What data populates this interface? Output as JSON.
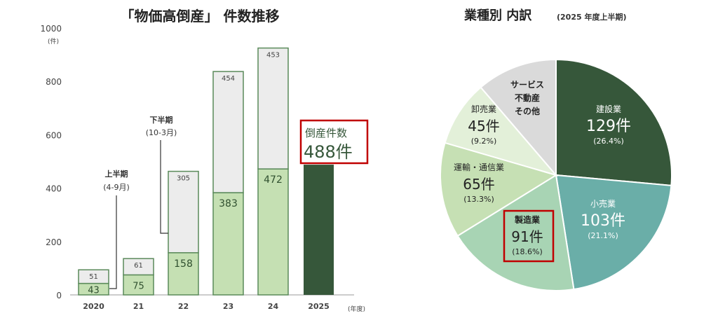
{
  "chart_data": [
    {
      "type": "bar",
      "stacked": true,
      "title": "「物価高倒産」 件数推移",
      "ylabel": "(件)",
      "xlabel": "(年度)",
      "ylim": [
        0,
        1000
      ],
      "yticks": [
        "0",
        "200",
        "400",
        "600",
        "800",
        "1000"
      ],
      "categories": [
        "2020",
        "21",
        "22",
        "23",
        "24",
        "2025"
      ],
      "series": [
        {
          "name": "上半期 (4-9月)",
          "values": [
            43,
            75,
            158,
            383,
            472,
            488
          ]
        },
        {
          "name": "下半期 (10-3月)",
          "values": [
            51,
            61,
            305,
            454,
            453,
            null
          ]
        }
      ],
      "annotations": {
        "first_half_line1": "上半期",
        "first_half_line2": "(4-9月)",
        "second_half_line1": "下半期",
        "second_half_line2": "(10-3月)",
        "highlight_label": "倒産件数",
        "highlight_value": "488件"
      },
      "colors": {
        "first_half": "#c5e0b3",
        "second_half": "#ececec",
        "border": "#5a8a5a",
        "current": "#36573a",
        "highlight": "#c00000"
      }
    },
    {
      "type": "pie",
      "title": "業種別  内訳",
      "subtitle": "(2025 年度上半期)",
      "slices": [
        {
          "label": "建設業",
          "value": 129,
          "count": "129件",
          "pct": "(26.4%)",
          "color": "#36573a"
        },
        {
          "label": "小売業",
          "value": 103,
          "count": "103件",
          "pct": "(21.1%)",
          "color": "#6aaea8"
        },
        {
          "label": "製造業",
          "value": 91,
          "count": "91件",
          "pct": "(18.6%)",
          "color": "#a8d4b4"
        },
        {
          "label": "運輸・通信業",
          "value": 65,
          "count": "65件",
          "pct": "(13.3%)",
          "color": "#c6e0b4"
        },
        {
          "label": "卸売業",
          "value": 45,
          "count": "45件",
          "pct": "(9.2%)",
          "color": "#e3f0d9"
        },
        {
          "label": "サービス 不動産 その他",
          "value": 55,
          "lines": [
            "サービス",
            "不動産",
            "その他"
          ],
          "color": "#dadada"
        }
      ]
    }
  ]
}
